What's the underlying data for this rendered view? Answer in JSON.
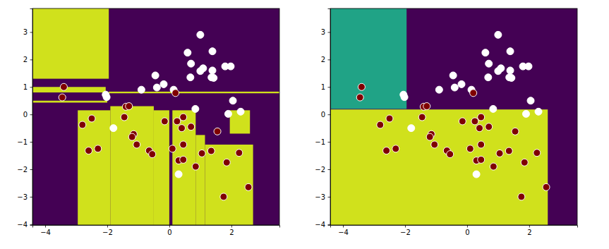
{
  "chart_data": [
    {
      "type": "scatter",
      "color": "#440154",
      "xlim": [
        -4.41,
        3.55
      ],
      "ylim": [
        -4.03,
        3.86
      ],
      "xticks": [
        {
          "value": -4,
          "label": "−4"
        },
        {
          "value": -2,
          "label": "−2"
        },
        0,
        2
      ],
      "yticks": [
        {
          "value": -4,
          "label": "−4"
        },
        {
          "value": -3,
          "label": "−3"
        },
        {
          "value": -2,
          "label": "−2"
        },
        {
          "value": -1,
          "label": "−1"
        },
        0,
        1,
        2,
        3
      ],
      "regions": [
        {
          "x": [
            -4.41,
            -1.95
          ],
          "y": [
            1.3,
            3.86
          ],
          "color": "#d0e11c"
        },
        {
          "x": [
            -4.41,
            -2.05
          ],
          "y": [
            0.8,
            1.0
          ],
          "color": "#d0e11c"
        },
        {
          "x": [
            -4.41,
            -2.0
          ],
          "y": [
            0.43,
            0.5
          ],
          "color": "#d0e11c"
        },
        {
          "x": [
            -1.95,
            3.55
          ],
          "y": [
            0.77,
            0.83
          ],
          "color": "#d0e11c"
        },
        {
          "x": [
            -2.95,
            -1.9
          ],
          "y": [
            -4.03,
            0.15
          ],
          "color": "#d0e11c"
        },
        {
          "x": [
            -1.9,
            -0.5
          ],
          "y": [
            -4.03,
            0.3
          ],
          "color": "#d0e11c"
        },
        {
          "x": [
            -0.5,
            0.0
          ],
          "y": [
            -4.03,
            0.15
          ],
          "color": "#d0e11c"
        },
        {
          "x": [
            0.1,
            0.85
          ],
          "y": [
            -4.03,
            0.15
          ],
          "color": "#d0e11c"
        },
        {
          "x": [
            0.85,
            1.15
          ],
          "y": [
            -4.03,
            -0.75
          ],
          "color": "#d0e11c"
        },
        {
          "x": [
            1.15,
            2.7
          ],
          "y": [
            -4.03,
            -1.1
          ],
          "color": "#d0e11c"
        },
        {
          "x": [
            1.95,
            2.6
          ],
          "y": [
            -0.7,
            0.15
          ],
          "color": "#d0e11c"
        }
      ],
      "series": [
        {
          "color": "#ffffff",
          "x": [
            1.0,
            1.39,
            0.59,
            0.7,
            1.09,
            1.0,
            1.39,
            1.36,
            1.43,
            1.8,
            1.98,
            0.68,
            -0.45,
            -0.18,
            -0.4,
            0.14,
            -0.9,
            -2.05,
            -2.02,
            2.05,
            0.84,
            1.9,
            2.3,
            -1.8,
            0.3
          ],
          "values": [
            2.9,
            2.3,
            2.25,
            1.85,
            1.68,
            1.58,
            1.6,
            1.35,
            1.33,
            1.75,
            1.75,
            1.35,
            1.42,
            1.1,
            0.98,
            0.9,
            0.9,
            0.72,
            0.63,
            0.5,
            0.2,
            0.02,
            0.1,
            -0.5,
            -2.18
          ]
        },
        {
          "color": "#7f0000",
          "x": [
            -3.4,
            -3.45,
            0.2,
            -1.4,
            -1.3,
            -2.8,
            -2.5,
            -2.6,
            -2.3,
            -1.45,
            -1.15,
            -1.2,
            -1.05,
            -0.65,
            -0.55,
            -0.15,
            0.1,
            0.25,
            0.45,
            0.4,
            0.7,
            0.3,
            0.45,
            0.45,
            0.85,
            1.05,
            1.35,
            1.55,
            1.85,
            2.25,
            1.75,
            2.55
          ],
          "values": [
            1.0,
            0.62,
            0.78,
            0.28,
            0.3,
            -0.38,
            -0.15,
            -1.32,
            -1.25,
            -0.1,
            -0.72,
            -0.82,
            -1.1,
            -1.32,
            -1.45,
            -0.25,
            -1.25,
            -0.25,
            -0.1,
            -0.5,
            -0.45,
            -1.68,
            -1.65,
            -1.1,
            -1.9,
            -1.42,
            -1.33,
            -0.62,
            -1.75,
            -1.4,
            -3.0,
            -2.65
          ]
        }
      ]
    },
    {
      "type": "scatter",
      "color": "#440154",
      "xlim": [
        -4.41,
        3.55
      ],
      "ylim": [
        -4.03,
        3.86
      ],
      "xticks": [
        {
          "value": -4,
          "label": "−4"
        },
        {
          "value": -2,
          "label": "−2"
        },
        0,
        2
      ],
      "yticks": [
        {
          "value": -4,
          "label": "−4"
        },
        {
          "value": -3,
          "label": "−3"
        },
        {
          "value": -2,
          "label": "−2"
        },
        {
          "value": -1,
          "label": "−1"
        },
        0,
        1,
        2,
        3
      ],
      "regions": [
        {
          "x": [
            -4.41,
            -1.95
          ],
          "y": [
            0.2,
            3.86
          ],
          "color": "#20a386"
        },
        {
          "x": [
            -4.41,
            2.6
          ],
          "y": [
            -4.03,
            0.18
          ],
          "color": "#d0e11c"
        }
      ],
      "series": [
        {
          "color": "#ffffff",
          "x": [
            1.0,
            1.39,
            0.59,
            0.7,
            1.09,
            1.0,
            1.39,
            1.36,
            1.43,
            1.8,
            1.98,
            0.68,
            -0.45,
            -0.18,
            -0.4,
            0.14,
            -0.9,
            -2.05,
            -2.02,
            2.05,
            0.84,
            1.9,
            2.3,
            -1.8,
            0.3
          ],
          "values": [
            2.9,
            2.3,
            2.25,
            1.85,
            1.68,
            1.58,
            1.6,
            1.35,
            1.33,
            1.75,
            1.75,
            1.35,
            1.42,
            1.1,
            0.98,
            0.9,
            0.9,
            0.72,
            0.63,
            0.5,
            0.2,
            0.02,
            0.1,
            -0.5,
            -2.18
          ]
        },
        {
          "color": "#7f0000",
          "x": [
            -3.4,
            -3.45,
            0.2,
            -1.4,
            -1.3,
            -2.8,
            -2.5,
            -2.6,
            -2.3,
            -1.45,
            -1.15,
            -1.2,
            -1.05,
            -0.65,
            -0.55,
            -0.15,
            0.1,
            0.25,
            0.45,
            0.4,
            0.7,
            0.3,
            0.45,
            0.45,
            0.85,
            1.05,
            1.35,
            1.55,
            1.85,
            2.25,
            1.75,
            2.55
          ],
          "values": [
            1.0,
            0.62,
            0.78,
            0.28,
            0.3,
            -0.38,
            -0.15,
            -1.32,
            -1.25,
            -0.1,
            -0.72,
            -0.82,
            -1.1,
            -1.32,
            -1.45,
            -0.25,
            -1.25,
            -0.25,
            -0.1,
            -0.5,
            -0.45,
            -1.68,
            -1.65,
            -1.1,
            -1.9,
            -1.42,
            -1.33,
            -0.62,
            -1.75,
            -1.4,
            -3.0,
            -2.65
          ]
        }
      ]
    }
  ]
}
